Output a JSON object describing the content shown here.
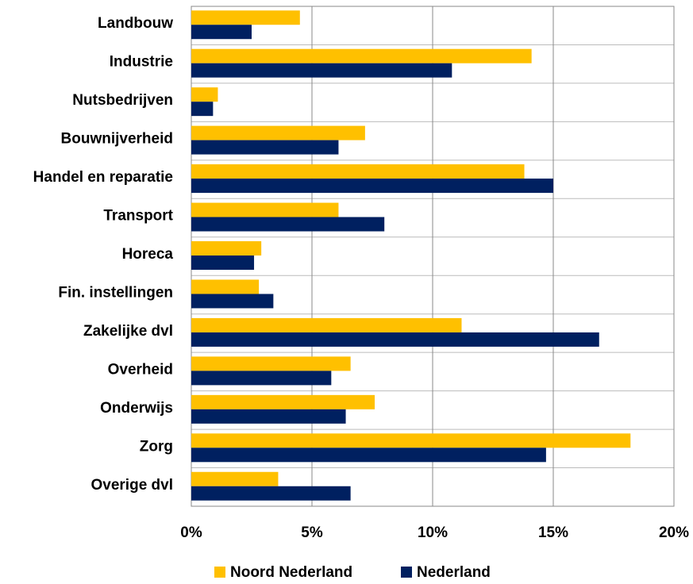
{
  "chart_data": {
    "type": "hbar",
    "categories": [
      "Landbouw",
      "Industrie",
      "Nutsbedrijven",
      "Bouwnijverheid",
      "Handel en reparatie",
      "Transport",
      "Horeca",
      "Fin. instellingen",
      "Zakelijke dvl",
      "Overheid",
      "Onderwijs",
      "Zorg",
      "Overige dvl"
    ],
    "series": [
      {
        "name": "Noord Nederland",
        "color": "#ffc000",
        "values": [
          4.5,
          14.1,
          1.1,
          7.2,
          13.8,
          6.1,
          2.9,
          2.8,
          11.2,
          6.6,
          7.6,
          18.2,
          3.6
        ]
      },
      {
        "name": "Nederland",
        "color": "#002060",
        "values": [
          2.5,
          10.8,
          0.9,
          6.1,
          15.0,
          8.0,
          2.6,
          3.4,
          16.9,
          5.8,
          6.4,
          14.7,
          6.6
        ]
      }
    ],
    "xlim": [
      0,
      20
    ],
    "xticks": [
      {
        "value": 0,
        "label": "0%"
      },
      {
        "value": 5,
        "label": "5%"
      },
      {
        "value": 10,
        "label": "10%"
      },
      {
        "value": 15,
        "label": "15%"
      },
      {
        "value": 20,
        "label": "20%"
      }
    ],
    "grid": true
  }
}
